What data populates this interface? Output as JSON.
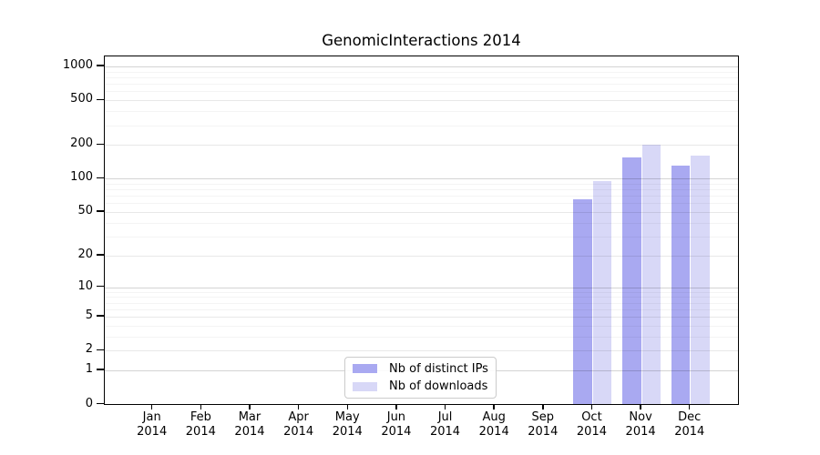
{
  "title": "GenomicInteractions 2014",
  "colors": {
    "distinct_ips": "#a9a9f1",
    "downloads": "#d8d8f7",
    "grid_decade": "rgba(0,0,0,0.17)",
    "grid_labeled": "rgba(0,0,0,0.09)",
    "grid_minor": "rgba(0,0,0,0.045)",
    "axis": "#000000"
  },
  "legend": {
    "items": [
      {
        "label": "Nb of distinct IPs",
        "key": "distinct_ips"
      },
      {
        "label": "Nb of downloads",
        "key": "downloads"
      }
    ]
  },
  "chart_data": {
    "type": "bar",
    "title": "GenomicInteractions 2014",
    "categories": [
      "Jan 2014",
      "Feb 2014",
      "Mar 2014",
      "Apr 2014",
      "May 2014",
      "Jun 2014",
      "Jul 2014",
      "Aug 2014",
      "Sep 2014",
      "Oct 2014",
      "Nov 2014",
      "Dec 2014"
    ],
    "x_tick_months": [
      "Jan",
      "Feb",
      "Mar",
      "Apr",
      "May",
      "Jun",
      "Jul",
      "Aug",
      "Sep",
      "Oct",
      "Nov",
      "Dec"
    ],
    "x_tick_year": "2014",
    "series": [
      {
        "name": "Nb of distinct IPs",
        "key": "distinct_ips",
        "values": [
          0,
          0,
          0,
          0,
          0,
          0,
          0,
          0,
          0,
          65,
          154,
          130
        ]
      },
      {
        "name": "Nb of downloads",
        "key": "downloads",
        "values": [
          0,
          0,
          0,
          0,
          0,
          0,
          0,
          0,
          0,
          96,
          203,
          160
        ]
      }
    ],
    "yscale": "log10(1+x)",
    "ylim": [
      0,
      1000
    ],
    "y_tick_values": [
      0,
      1,
      2,
      5,
      10,
      20,
      50,
      100,
      200,
      500,
      1000
    ],
    "y_tick_labels": [
      "0",
      "1",
      "2",
      "5",
      "10",
      "20",
      "50",
      "100",
      "200",
      "500",
      "1000"
    ],
    "y_decade_values": [
      1,
      10,
      100,
      1000
    ],
    "y_minor_gridlines": [
      3,
      4,
      6,
      7,
      8,
      9,
      30,
      40,
      60,
      70,
      80,
      90,
      300,
      400,
      600,
      700,
      800,
      900
    ],
    "grid": true,
    "legend_position": "bottom-center-inside",
    "xlabel": "",
    "ylabel": ""
  }
}
